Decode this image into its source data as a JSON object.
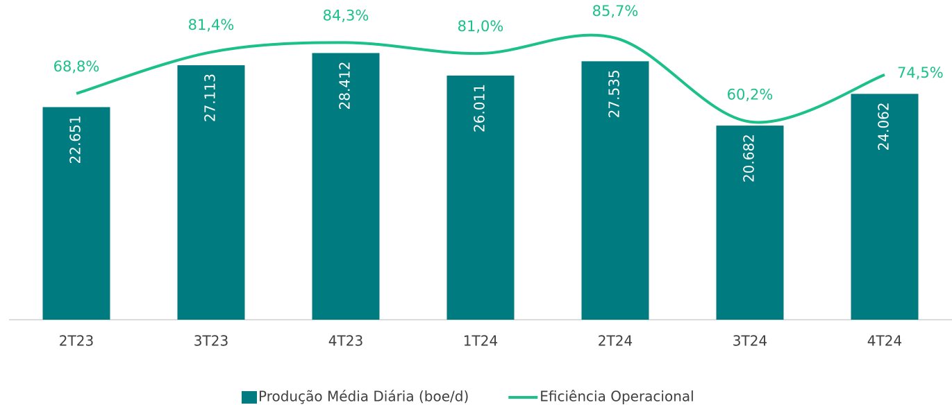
{
  "chart_data": {
    "type": "bar",
    "categories": [
      "2T23",
      "3T23",
      "4T23",
      "1T24",
      "2T24",
      "3T24",
      "4T24"
    ],
    "series": [
      {
        "name": "Produção Média Diária (boe/d)",
        "type": "bar",
        "color": "#007b80",
        "values": [
          22651,
          27113,
          28412,
          26011,
          27535,
          20682,
          24062
        ],
        "value_labels": [
          "22.651",
          "27.113",
          "28.412",
          "26.011",
          "27.535",
          "20.682",
          "24.062"
        ]
      },
      {
        "name": "Eficiência Operacional",
        "type": "line",
        "axis": "y2",
        "color": "#1bc08a",
        "values": [
          68.8,
          81.4,
          84.3,
          81.0,
          85.7,
          60.2,
          74.5
        ],
        "value_labels": [
          "68,8%",
          "81,4%",
          "84,3%",
          "81,0%",
          "85,7%",
          "60,2%",
          "74,5%"
        ]
      }
    ],
    "ylim": [
      0,
      30000
    ],
    "y2lim": [
      0,
      100
    ],
    "legend": "bottom"
  }
}
